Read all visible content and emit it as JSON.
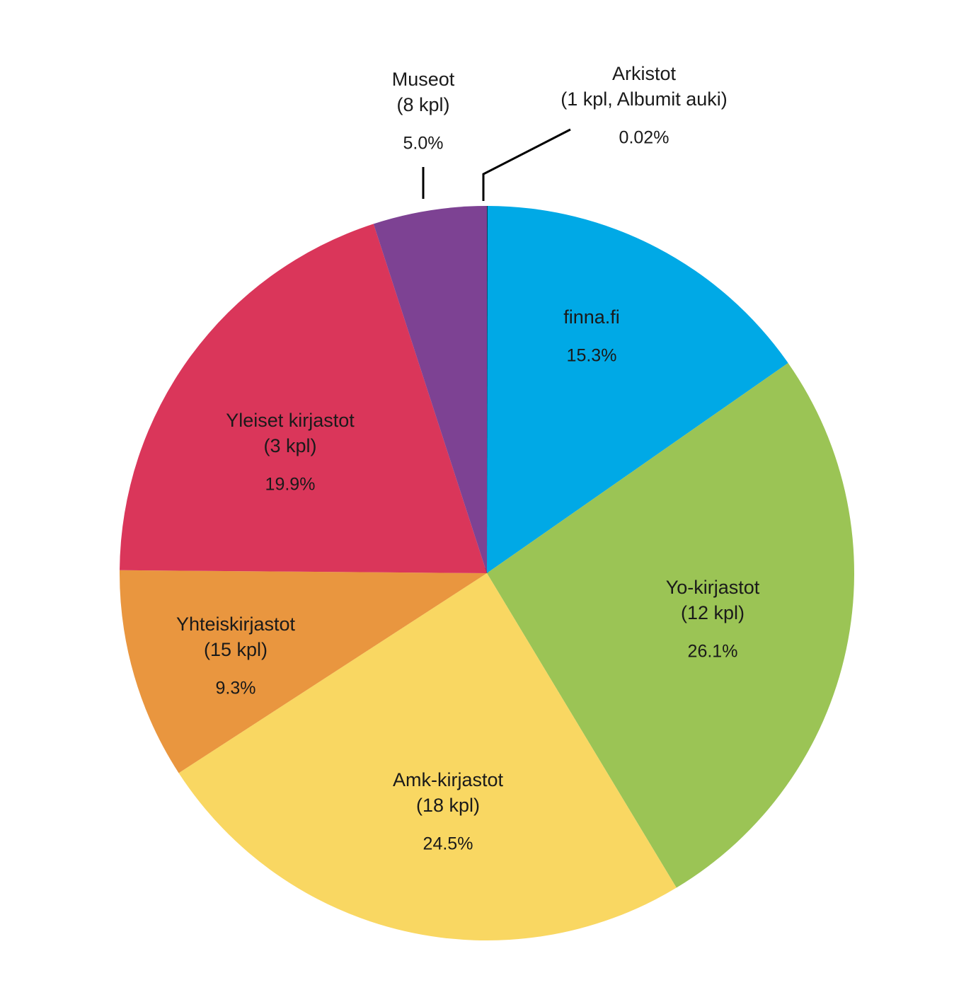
{
  "chart_data": {
    "type": "pie",
    "title": "",
    "start_angle_deg": 0,
    "direction": "clockwise",
    "slices": [
      {
        "label": "Arkistot",
        "count": "(1 kpl, Albumit auki)",
        "value": 0.02,
        "pct_label": "0.02%",
        "color": "#000000"
      },
      {
        "label": "finna.fi",
        "count": "",
        "value": 15.3,
        "pct_label": "15.3%",
        "color": "#00A9E6"
      },
      {
        "label": "Yo-kirjastot",
        "count": "(12 kpl)",
        "value": 26.1,
        "pct_label": "26.1%",
        "color": "#9BC455"
      },
      {
        "label": "Amk-kirjastot",
        "count": "(18 kpl)",
        "value": 24.5,
        "pct_label": "24.5%",
        "color": "#F9D762"
      },
      {
        "label": "Yhteiskirjastot",
        "count": "(15 kpl)",
        "value": 9.3,
        "pct_label": "9.3%",
        "color": "#E9963F"
      },
      {
        "label": "Yleiset kirjastot",
        "count": "(3 kpl)",
        "value": 19.9,
        "pct_label": "19.9%",
        "color": "#DA365A"
      },
      {
        "label": "Museot",
        "count": "(8 kpl)",
        "value": 5.0,
        "pct_label": "5.0%",
        "color": "#7D4293"
      }
    ]
  }
}
